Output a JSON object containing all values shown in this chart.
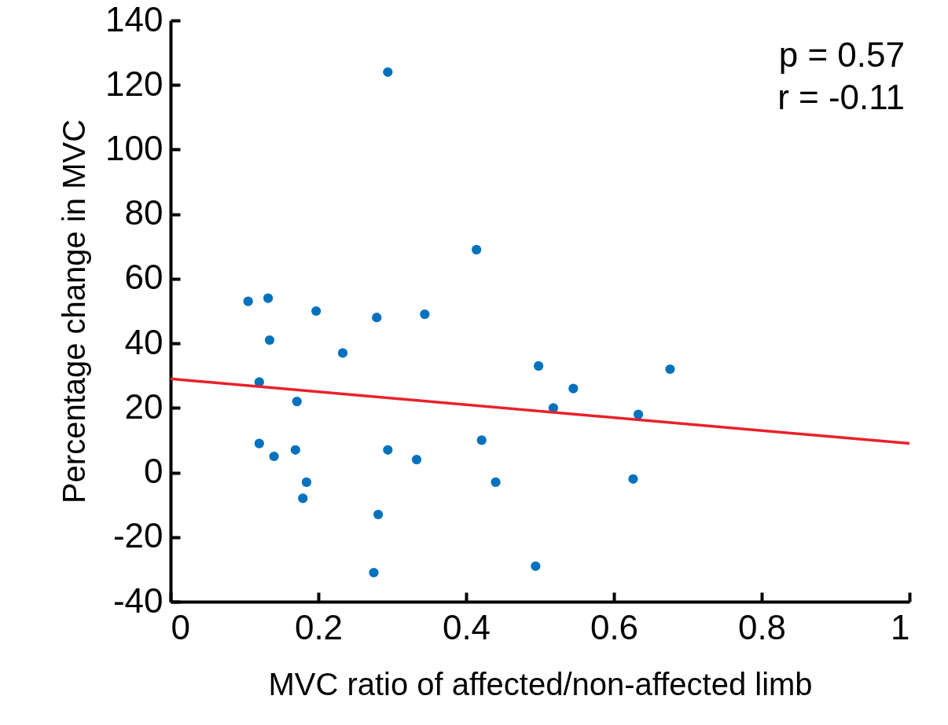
{
  "chart_data": {
    "type": "scatter",
    "xlabel": "MVC ratio of affected/non-affected limb",
    "ylabel": "Percentage change in MVC",
    "xlim": [
      0,
      1
    ],
    "xticks": [
      0,
      0.2,
      0.4,
      0.6,
      0.8,
      1
    ],
    "ylim": [
      -40,
      140
    ],
    "yticks": [
      -40,
      -20,
      0,
      20,
      40,
      60,
      80,
      100,
      120,
      140
    ],
    "annotations": [
      "p = 0.57",
      "r = -0.11"
    ],
    "series": [
      {
        "marker": "circle",
        "color": "#0072bd",
        "x": [
          0.105,
          0.132,
          0.134,
          0.12,
          0.12,
          0.14,
          0.197,
          0.171,
          0.169,
          0.184,
          0.179,
          0.233,
          0.294,
          0.279,
          0.344,
          0.281,
          0.275,
          0.294,
          0.333,
          0.414,
          0.421,
          0.44,
          0.498,
          0.494,
          0.518,
          0.545,
          0.626,
          0.633,
          0.676
        ],
        "values": [
          53,
          54,
          41,
          28,
          9,
          5,
          50,
          22,
          7,
          -3,
          -8,
          37,
          124,
          48,
          49,
          -13,
          -31,
          7,
          4,
          69,
          10,
          -3,
          33,
          -29,
          20,
          26,
          -2,
          18,
          32
        ]
      },
      {
        "type": "line",
        "color": "#e8212a",
        "x": [
          0,
          1
        ],
        "values": [
          29,
          9
        ]
      }
    ]
  }
}
